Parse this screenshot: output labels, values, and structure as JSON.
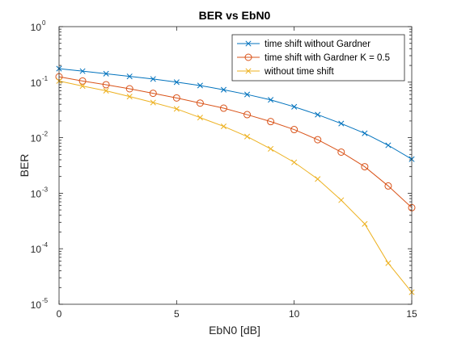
{
  "chart_data": {
    "type": "line",
    "title": "BER vs EbN0",
    "xlabel": "EbN0 [dB]",
    "ylabel": "BER",
    "xlim": [
      0,
      15
    ],
    "ylim": [
      1e-05,
      1
    ],
    "yscale": "log",
    "x_ticks": [
      {
        "value": 0,
        "label": "0"
      },
      {
        "value": 5,
        "label": "5"
      },
      {
        "value": 10,
        "label": "10"
      },
      {
        "value": 15,
        "label": "15"
      }
    ],
    "y_ticks": [
      {
        "value": 1,
        "base": "10",
        "exp": "0"
      },
      {
        "value": 0.1,
        "base": "10",
        "exp": "-1"
      },
      {
        "value": 0.01,
        "base": "10",
        "exp": "-2"
      },
      {
        "value": 0.001,
        "base": "10",
        "exp": "-3"
      },
      {
        "value": 0.0001,
        "base": "10",
        "exp": "-4"
      },
      {
        "value": 1e-05,
        "base": "10",
        "exp": "-5"
      }
    ],
    "grid": false,
    "legend_position": "top-right",
    "x": [
      0,
      1,
      2,
      3,
      4,
      5,
      6,
      7,
      8,
      9,
      10,
      11,
      12,
      13,
      14,
      15
    ],
    "series": [
      {
        "name": "time shift without Gardner",
        "color": "#0072BD",
        "marker": "x",
        "values": [
          0.175,
          0.158,
          0.142,
          0.127,
          0.114,
          0.1,
          0.087,
          0.073,
          0.06,
          0.048,
          0.036,
          0.026,
          0.018,
          0.012,
          0.0073,
          0.0041
        ]
      },
      {
        "name": "time shift with Gardner K = 0.5",
        "color": "#D95319",
        "marker": "o",
        "values": [
          0.125,
          0.105,
          0.09,
          0.076,
          0.063,
          0.052,
          0.042,
          0.034,
          0.026,
          0.0195,
          0.014,
          0.0092,
          0.0055,
          0.003,
          0.00135,
          0.00055
        ]
      },
      {
        "name": "without time shift",
        "color": "#EDB120",
        "marker": "x",
        "values": [
          0.105,
          0.085,
          0.07,
          0.055,
          0.043,
          0.033,
          0.023,
          0.016,
          0.0105,
          0.0063,
          0.0036,
          0.0018,
          0.00075,
          0.00028,
          5.5e-05,
          1.65e-05
        ]
      }
    ]
  }
}
